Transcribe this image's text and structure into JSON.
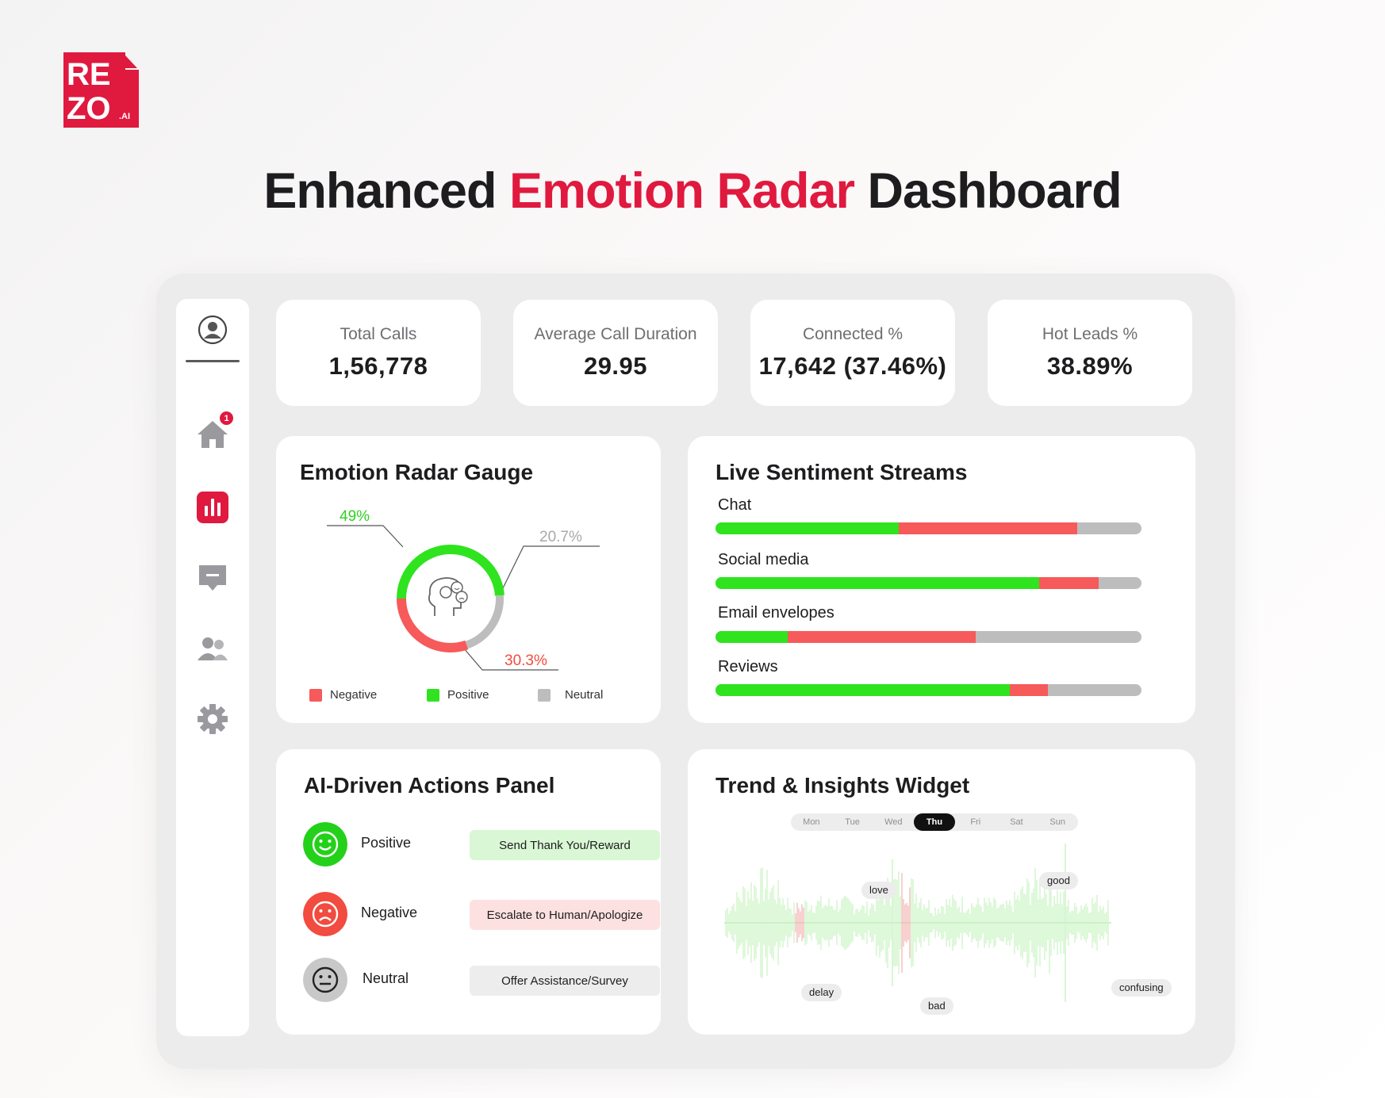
{
  "brand": {
    "logo_top": "RE",
    "logo_bottom": "ZO",
    "logo_suffix": ".AI",
    "color": "#e0193f"
  },
  "page": {
    "title_part1": "Enhanced",
    "title_accent": "Emotion Radar",
    "title_part2": "Dashboard"
  },
  "sidebar": {
    "items": [
      {
        "name": "profile",
        "icon": "user-circle-icon"
      },
      {
        "name": "home",
        "icon": "home-icon",
        "badge": "1"
      },
      {
        "name": "analytics",
        "icon": "bar-chart-icon",
        "active": true
      },
      {
        "name": "messages",
        "icon": "chat-icon"
      },
      {
        "name": "users",
        "icon": "users-icon"
      },
      {
        "name": "settings",
        "icon": "gear-icon"
      }
    ]
  },
  "kpis": [
    {
      "label": "Total Calls",
      "value": "1,56,778"
    },
    {
      "label": "Average Call Duration",
      "value": "29.95"
    },
    {
      "label": "Connected %",
      "value": "17,642 (37.46%)"
    },
    {
      "label": "Hot Leads %",
      "value": "38.89%"
    }
  ],
  "gauge": {
    "title": "Emotion Radar Gauge",
    "positive_label": "49%",
    "neutral_label": "20.7%",
    "negative_label": "30.3%",
    "legend": [
      "Negative",
      "Positive",
      "Neutral"
    ],
    "colors": {
      "positive": "#2fe31f",
      "negative": "#f65a5a",
      "neutral": "#bdbdbd"
    }
  },
  "chart_data": {
    "type": "pie",
    "categories": [
      "Positive",
      "Neutral",
      "Negative"
    ],
    "values": [
      49,
      20.7,
      30.3
    ]
  },
  "streams": {
    "title": "Live Sentiment Streams",
    "items": [
      {
        "label": "Chat",
        "positive": 0.43,
        "negative": 0.42
      },
      {
        "label": "Social media",
        "positive": 0.76,
        "negative": 0.14
      },
      {
        "label": "Email envelopes",
        "positive": 0.17,
        "negative": 0.44
      },
      {
        "label": "Reviews",
        "positive": 0.69,
        "negative": 0.09
      }
    ]
  },
  "actions": {
    "title": "AI-Driven Actions Panel",
    "items": [
      {
        "label": "Positive",
        "action": "Send Thank You/Reward",
        "icon": "smile-icon",
        "color": "#24d11a",
        "btn_color": "#d9f7d4"
      },
      {
        "label": "Negative",
        "action": "Escalate to Human/Apologize",
        "icon": "frown-icon",
        "color": "#f24b3f",
        "btn_color": "#fde0e0"
      },
      {
        "label": "Neutral",
        "action": "Offer Assistance/Survey",
        "icon": "neutral-face-icon",
        "color": "#c8c8c8",
        "btn_color": "#ededed"
      }
    ]
  },
  "trend": {
    "title": "Trend & Insights Widget",
    "days": [
      "Mon",
      "Tue",
      "Wed",
      "Thu",
      "Fri",
      "Sat",
      "Sun"
    ],
    "active_day": "Thu",
    "tags": [
      "love",
      "good",
      "delay",
      "bad",
      "confusing"
    ]
  }
}
